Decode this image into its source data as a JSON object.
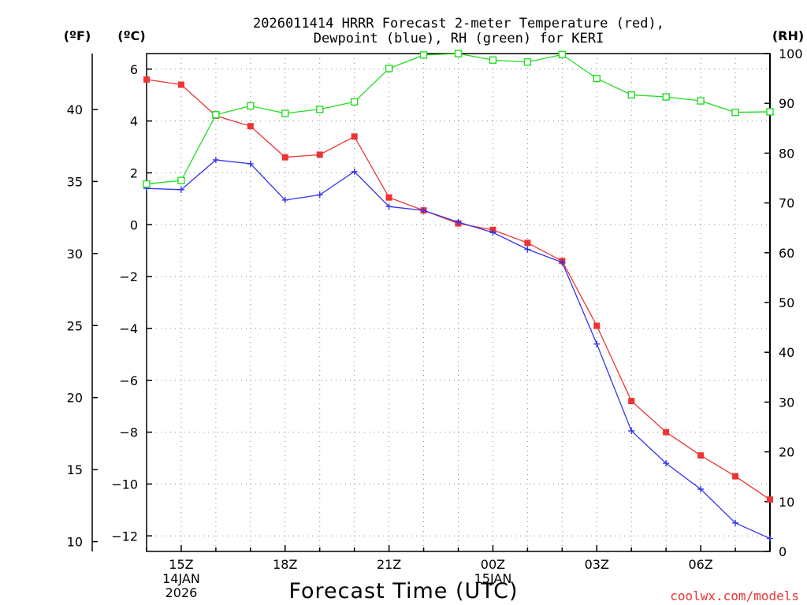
{
  "chart_data": {
    "type": "line",
    "title_line1": "2026011414 HRRR Forecast 2-meter Temperature (red),",
    "title_line2": "Dewpoint (blue), RH (green) for KERI",
    "unit_left_f": "(ºF)",
    "unit_left_c": "(ºC)",
    "unit_right": "(RH)",
    "xlabel": "Forecast Time (UTC)",
    "credit": "coolwx.com/models",
    "x_hours": [
      14,
      15,
      16,
      17,
      18,
      19,
      20,
      21,
      22,
      23,
      24,
      25,
      26,
      27,
      28,
      29,
      30,
      31,
      32
    ],
    "x_ticks": [
      {
        "hour": 15,
        "lines": [
          "15Z",
          "14JAN",
          "2026"
        ]
      },
      {
        "hour": 18,
        "lines": [
          "18Z"
        ]
      },
      {
        "hour": 21,
        "lines": [
          "21Z"
        ]
      },
      {
        "hour": 24,
        "lines": [
          "00Z",
          "15JAN"
        ]
      },
      {
        "hour": 27,
        "lines": [
          "03Z"
        ]
      },
      {
        "hour": 30,
        "lines": [
          "06Z"
        ]
      }
    ],
    "xlim": [
      14,
      32
    ],
    "ylim_c": [
      -12.6,
      6.6
    ],
    "ylim_rh": [
      0,
      100
    ],
    "y_ticks_c": [
      6,
      4,
      2,
      0,
      -2,
      -4,
      -6,
      -8,
      -10,
      -12
    ],
    "y_tick_labels_c": [
      "6",
      "4",
      "2",
      "0",
      "−2",
      "−4",
      "−6",
      "−8",
      "−10",
      "−12"
    ],
    "y_ticks_f": [
      40,
      35,
      30,
      25,
      20,
      15,
      10
    ],
    "y_tick_labels_f": [
      "40",
      "35",
      "30",
      "25",
      "20",
      "15",
      "10"
    ],
    "y_ticks_rh": [
      0,
      10,
      20,
      30,
      40,
      50,
      60,
      70,
      80,
      90,
      100
    ],
    "y_tick_labels_rh": [
      "0",
      "10",
      "20",
      "30",
      "40",
      "50",
      "60",
      "70",
      "80",
      "90",
      "100"
    ],
    "series": [
      {
        "name": "Temperature",
        "unit": "C",
        "color": "#ee3333",
        "marker": "square-filled",
        "values": [
          5.6,
          5.4,
          4.2,
          3.8,
          2.6,
          2.7,
          3.4,
          1.05,
          0.55,
          0.05,
          -0.2,
          -0.7,
          -1.4,
          -3.9,
          -6.8,
          -8.0,
          -8.9,
          -9.7,
          -10.6
        ]
      },
      {
        "name": "Dewpoint",
        "unit": "C",
        "color": "#3333ee",
        "marker": "plus",
        "values": [
          1.4,
          1.35,
          2.5,
          2.35,
          0.95,
          1.15,
          2.05,
          0.7,
          0.55,
          0.1,
          -0.3,
          -0.95,
          -1.45,
          -4.6,
          -7.95,
          -9.2,
          -10.2,
          -11.5,
          -12.1
        ]
      },
      {
        "name": "RH",
        "unit": "%",
        "color": "#22dd22",
        "marker": "square-open",
        "values": [
          73.8,
          74.5,
          87.7,
          89.5,
          88.0,
          88.8,
          90.3,
          97.0,
          99.7,
          100,
          98.7,
          98.3,
          99.8,
          95.0,
          91.7,
          91.3,
          90.5,
          88.2,
          88.3
        ]
      }
    ]
  }
}
